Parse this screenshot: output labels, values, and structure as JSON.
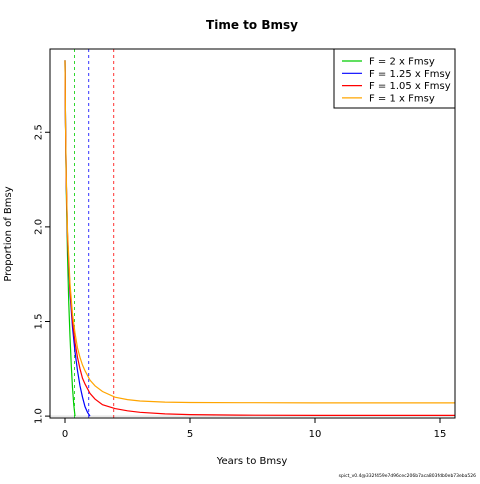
{
  "chart_data": {
    "type": "line",
    "title": "Time to Bmsy",
    "xlabel": "Years to Bmsy",
    "ylabel": "Proportion of Bmsy",
    "xlim": [
      -0.6,
      15.6
    ],
    "ylim": [
      0.99,
      2.94
    ],
    "xticks": [
      0,
      5,
      10,
      15
    ],
    "yticks": [
      1.0,
      1.5,
      2.0,
      2.5
    ],
    "ytick_labels": [
      "1.0",
      "1.5",
      "2.0",
      "2.5"
    ],
    "grid": false,
    "legend_position": "top-right",
    "reference_line_y": 1.0,
    "series": [
      {
        "name": "F = 2 x Fmsy",
        "color": "#00cc00",
        "x": [
          0,
          0.02,
          0.05,
          0.1,
          0.15,
          0.2,
          0.25,
          0.3,
          0.35,
          0.4
        ],
        "y": [
          2.88,
          2.55,
          2.2,
          1.85,
          1.6,
          1.42,
          1.27,
          1.15,
          1.06,
          1.0
        ],
        "time_to_bmsy": 0.38
      },
      {
        "name": "F = 1.25 x Fmsy",
        "color": "#0000ff",
        "x": [
          0,
          0.02,
          0.05,
          0.1,
          0.2,
          0.3,
          0.4,
          0.5,
          0.6,
          0.7,
          0.8,
          0.9,
          1.0
        ],
        "y": [
          2.88,
          2.55,
          2.25,
          1.95,
          1.65,
          1.47,
          1.34,
          1.24,
          1.16,
          1.1,
          1.05,
          1.02,
          1.0
        ],
        "time_to_bmsy": 0.95
      },
      {
        "name": "F = 1.05 x Fmsy",
        "color": "#ff0000",
        "x": [
          0,
          0.02,
          0.05,
          0.1,
          0.2,
          0.3,
          0.4,
          0.5,
          0.6,
          0.7,
          0.8,
          1.0,
          1.2,
          1.5,
          2.0,
          2.5,
          3.0,
          4.0,
          5.0,
          7.0,
          10.0,
          13.0,
          15.6
        ],
        "y": [
          2.88,
          2.55,
          2.25,
          1.95,
          1.67,
          1.5,
          1.39,
          1.31,
          1.25,
          1.2,
          1.17,
          1.12,
          1.09,
          1.06,
          1.04,
          1.028,
          1.02,
          1.012,
          1.008,
          1.005,
          1.004,
          1.004,
          1.004
        ],
        "time_to_bmsy": 1.95
      },
      {
        "name": "F = 1 x Fmsy",
        "color": "#ffa500",
        "x": [
          0,
          0.02,
          0.05,
          0.1,
          0.2,
          0.3,
          0.4,
          0.5,
          0.6,
          0.7,
          0.8,
          1.0,
          1.2,
          1.5,
          2.0,
          2.5,
          3.0,
          4.0,
          5.0,
          7.0,
          10.0,
          13.0,
          15.6
        ],
        "y": [
          2.88,
          2.56,
          2.27,
          1.98,
          1.7,
          1.54,
          1.44,
          1.36,
          1.31,
          1.27,
          1.24,
          1.19,
          1.16,
          1.13,
          1.1,
          1.087,
          1.08,
          1.074,
          1.072,
          1.071,
          1.07,
          1.07,
          1.07
        ]
      }
    ],
    "footnote": "spict_v0.4@332f459e7d96cec206b7aca803fdb0eb73eba526"
  }
}
